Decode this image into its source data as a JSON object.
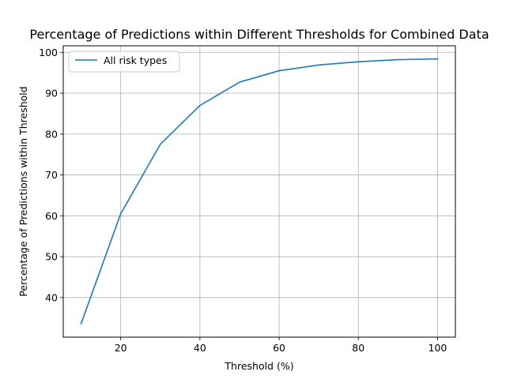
{
  "chart_data": {
    "type": "line",
    "title": "Percentage of Predictions within Different Thresholds for Combined Data",
    "xlabel": "Threshold (%)",
    "ylabel": "Percentage of Predictions within Threshold",
    "xlim": [
      5.5,
      104.5
    ],
    "ylim": [
      30.3,
      101.6
    ],
    "xticks": [
      20,
      40,
      60,
      80,
      100
    ],
    "yticks": [
      40,
      50,
      60,
      70,
      80,
      90,
      100
    ],
    "grid": true,
    "legend_position": "upper-left",
    "series": [
      {
        "name": "All risk types",
        "color": "#1f77b4",
        "x": [
          10,
          20,
          30,
          40,
          50,
          60,
          70,
          80,
          90,
          100
        ],
        "y": [
          33.6,
          60.5,
          77.5,
          87.0,
          92.7,
          95.5,
          96.9,
          97.7,
          98.2,
          98.4
        ]
      }
    ]
  }
}
